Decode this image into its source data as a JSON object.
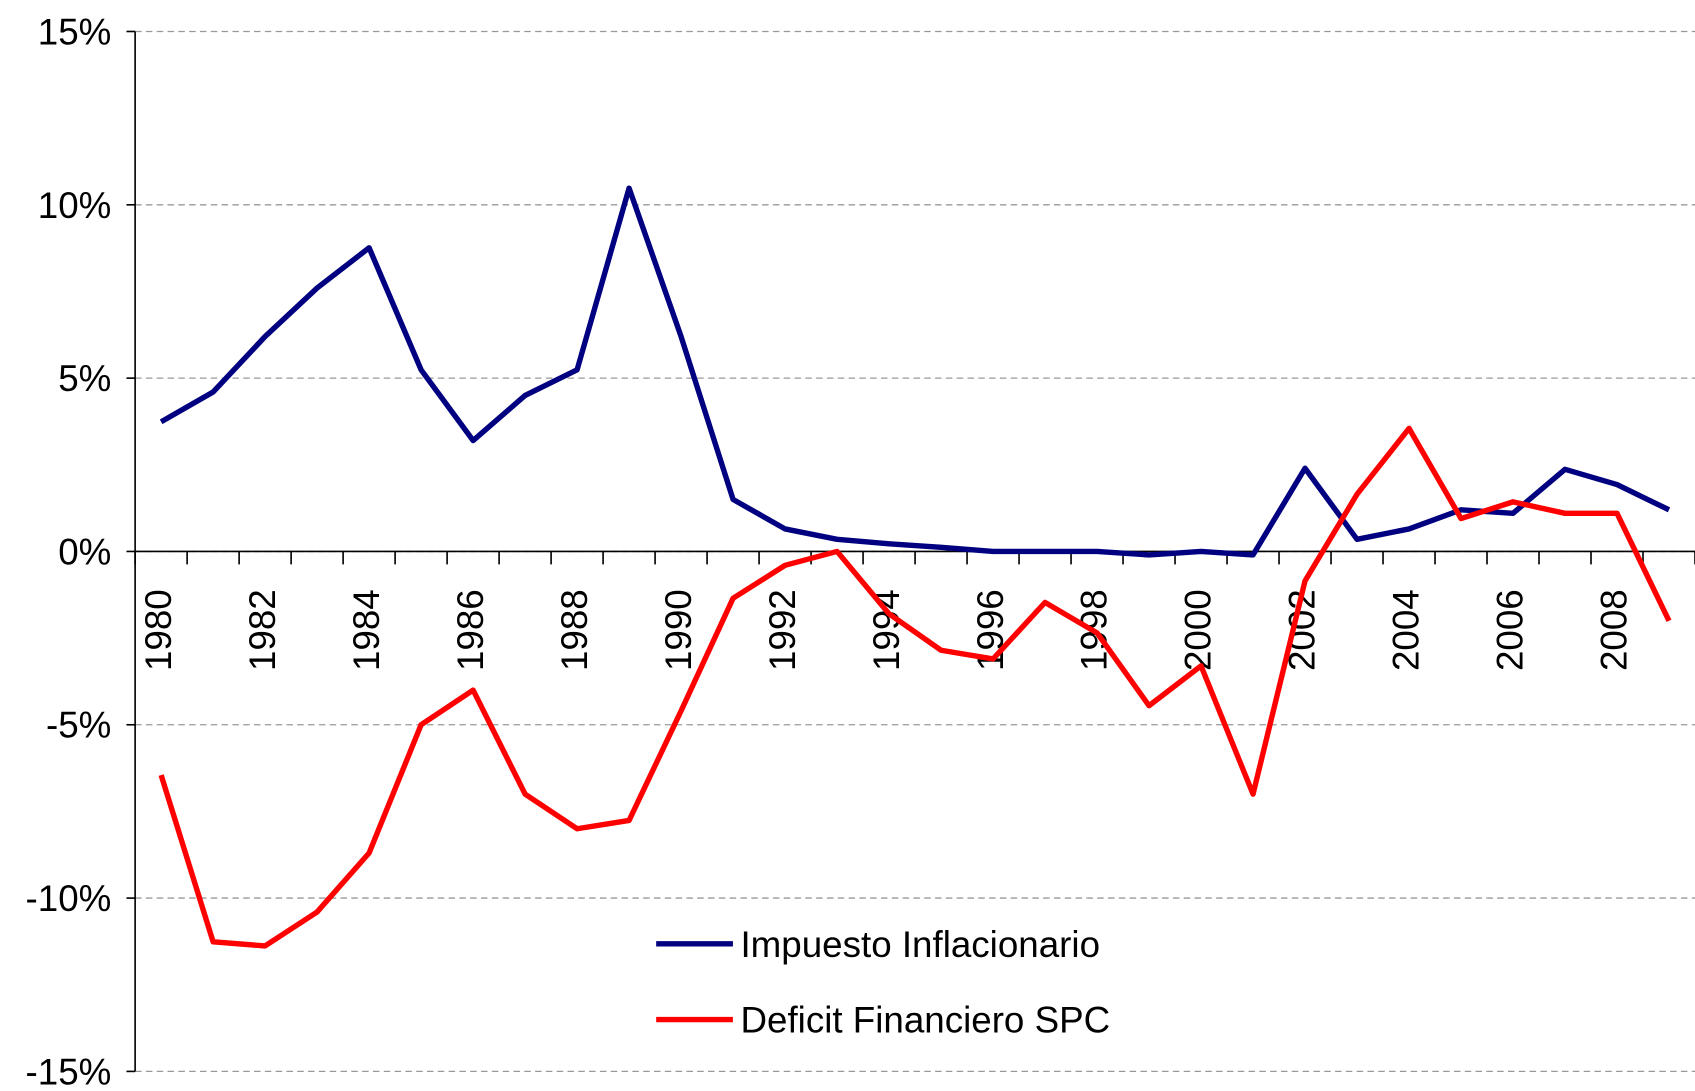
{
  "chart_data": {
    "type": "line",
    "categories": [
      "1980",
      null,
      "1982",
      null,
      "1984",
      null,
      "1986",
      null,
      "1988",
      null,
      "1990",
      null,
      "1992",
      null,
      "1994",
      null,
      "1996",
      null,
      "1998",
      null,
      "2000",
      null,
      "2002",
      null,
      "2004",
      null,
      "2006",
      null,
      "2008",
      null
    ],
    "series": [
      {
        "name": "Impuesto Inflacionario",
        "color": "#000080",
        "values": [
          3.74,
          4.6,
          6.2,
          7.6,
          8.76,
          5.24,
          3.2,
          4.5,
          5.24,
          10.48,
          6.2,
          1.5,
          0.65,
          0.35,
          0.22,
          0.12,
          0,
          0,
          0,
          -0.1,
          0,
          -0.1,
          2.4,
          0.35,
          0.65,
          1.2,
          1.1,
          2.37,
          1.93,
          1.2
        ]
      },
      {
        "name": "Deficit Financiero SPC",
        "color": "#ff0000",
        "values": [
          -6.45,
          -11.26,
          -11.38,
          -10.4,
          -8.7,
          -5.0,
          -4.0,
          -7.0,
          -8.0,
          -7.76,
          -4.6,
          -1.35,
          -0.4,
          0,
          -1.8,
          -2.85,
          -3.1,
          -1.47,
          -2.35,
          -4.45,
          -3.3,
          -7.0,
          -0.85,
          1.65,
          3.55,
          0.95,
          1.43,
          1.1,
          1.1,
          -2.0
        ]
      }
    ],
    "ylim": [
      -15,
      15
    ],
    "yticks": [
      {
        "value": -15,
        "label": "-15%"
      },
      {
        "value": -10,
        "label": "-10%"
      },
      {
        "value": -5,
        "label": "-5%"
      },
      {
        "value": 0,
        "label": "0%"
      },
      {
        "value": 5,
        "label": "5%"
      },
      {
        "value": 10,
        "label": "10%"
      },
      {
        "value": 15,
        "label": "15%"
      }
    ],
    "grid": true
  }
}
